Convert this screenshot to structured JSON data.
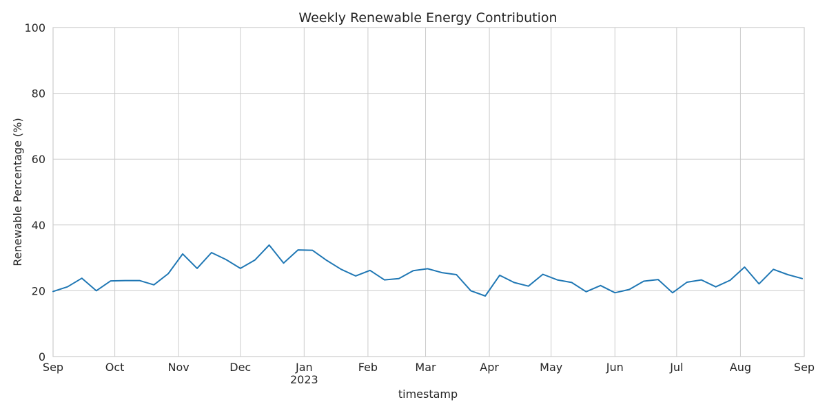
{
  "chart_data": {
    "type": "line",
    "title": "Weekly Renewable Energy Contribution",
    "xlabel": "timestamp",
    "ylabel": "Renewable Percentage (%)",
    "ylim": [
      0,
      100
    ],
    "xlim": [
      "2022-09-01",
      "2023-09-01"
    ],
    "grid": true,
    "color": "#1f77b4",
    "y_ticks": [
      {
        "value": 0,
        "label": "0"
      },
      {
        "value": 20,
        "label": "20"
      },
      {
        "value": 40,
        "label": "40"
      },
      {
        "value": 60,
        "label": "60"
      },
      {
        "value": 80,
        "label": "80"
      },
      {
        "value": 100,
        "label": "100"
      }
    ],
    "x_ticks": [
      {
        "date": "2022-09-01",
        "label": "Sep"
      },
      {
        "date": "2022-10-01",
        "label": "Oct"
      },
      {
        "date": "2022-11-01",
        "label": "Nov"
      },
      {
        "date": "2022-12-01",
        "label": "Dec"
      },
      {
        "date": "2023-01-01",
        "label": "Jan",
        "sublabel": "2023"
      },
      {
        "date": "2023-02-01",
        "label": "Feb"
      },
      {
        "date": "2023-03-01",
        "label": "Mar"
      },
      {
        "date": "2023-04-01",
        "label": "Apr"
      },
      {
        "date": "2023-05-01",
        "label": "May"
      },
      {
        "date": "2023-06-01",
        "label": "Jun"
      },
      {
        "date": "2023-07-01",
        "label": "Jul"
      },
      {
        "date": "2023-08-01",
        "label": "Aug"
      },
      {
        "date": "2023-09-01",
        "label": "Sep"
      }
    ],
    "series": [
      {
        "x": [
          "2022-09-01",
          "2022-09-08",
          "2022-09-15",
          "2022-09-22",
          "2022-09-29",
          "2022-10-06",
          "2022-10-13",
          "2022-10-20",
          "2022-10-27",
          "2022-11-03",
          "2022-11-10",
          "2022-11-17",
          "2022-11-24",
          "2022-12-01",
          "2022-12-08",
          "2022-12-15",
          "2022-12-22",
          "2022-12-29",
          "2023-01-05",
          "2023-01-12",
          "2023-01-19",
          "2023-01-26",
          "2023-02-02",
          "2023-02-09",
          "2023-02-16",
          "2023-02-23",
          "2023-03-02",
          "2023-03-09",
          "2023-03-16",
          "2023-03-23",
          "2023-03-30",
          "2023-04-06",
          "2023-04-13",
          "2023-04-20",
          "2023-04-27",
          "2023-05-04",
          "2023-05-11",
          "2023-05-18",
          "2023-05-25",
          "2023-06-01",
          "2023-06-08",
          "2023-06-15",
          "2023-06-22",
          "2023-06-29",
          "2023-07-06",
          "2023-07-13",
          "2023-07-20",
          "2023-07-27",
          "2023-08-03",
          "2023-08-10",
          "2023-08-17",
          "2023-08-24",
          "2023-08-31"
        ],
        "values": [
          19.8,
          21.2,
          23.8,
          20.0,
          23.0,
          23.1,
          23.1,
          21.8,
          25.2,
          31.2,
          26.8,
          31.6,
          29.5,
          26.8,
          29.3,
          33.9,
          28.4,
          32.4,
          32.3,
          29.2,
          26.5,
          24.5,
          26.2,
          23.3,
          23.7,
          26.1,
          26.7,
          25.5,
          24.9,
          20.0,
          18.4,
          24.7,
          22.5,
          21.4,
          25.0,
          23.3,
          22.5,
          19.7,
          21.6,
          19.4,
          20.4,
          22.9,
          23.4,
          19.4,
          22.6,
          23.3,
          21.2,
          23.2,
          27.2,
          22.1,
          26.5,
          24.9,
          23.7
        ]
      }
    ]
  }
}
